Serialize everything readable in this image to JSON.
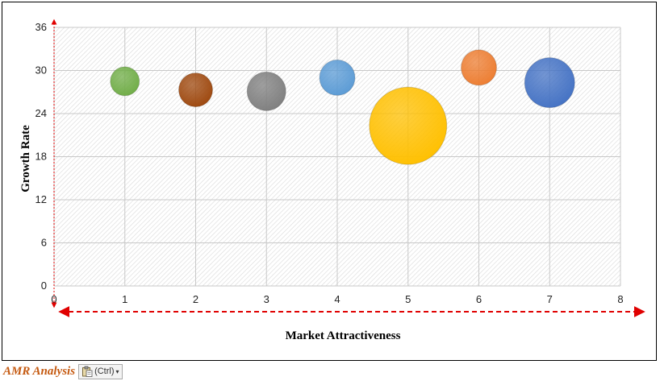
{
  "chart_data": {
    "type": "scatter",
    "title": "",
    "xlabel": "Market Attractiveness",
    "ylabel": "Growth Rate",
    "xlim": [
      0,
      8
    ],
    "ylim": [
      0,
      36
    ],
    "x_ticks": [
      0,
      1,
      2,
      3,
      4,
      5,
      6,
      7,
      8
    ],
    "y_ticks": [
      0,
      6,
      12,
      18,
      24,
      30,
      36
    ],
    "grid": true,
    "legend": "none",
    "bubbles": [
      {
        "x": 1,
        "y": 28.5,
        "size": 18,
        "color": "#70ad47"
      },
      {
        "x": 2,
        "y": 27.3,
        "size": 21,
        "color": "#9e480e"
      },
      {
        "x": 3,
        "y": 27.1,
        "size": 24,
        "color": "#7f7f7f"
      },
      {
        "x": 4,
        "y": 29.0,
        "size": 22,
        "color": "#5b9bd5"
      },
      {
        "x": 5,
        "y": 22.3,
        "size": 48,
        "color": "#ffc000"
      },
      {
        "x": 6,
        "y": 30.4,
        "size": 22,
        "color": "#ed7d31"
      },
      {
        "x": 7,
        "y": 28.3,
        "size": 31,
        "color": "#4472c4"
      }
    ]
  },
  "footer": {
    "brand": "AMR Analysis",
    "paste_label": "(Ctrl)",
    "paste_caret": "▾"
  }
}
